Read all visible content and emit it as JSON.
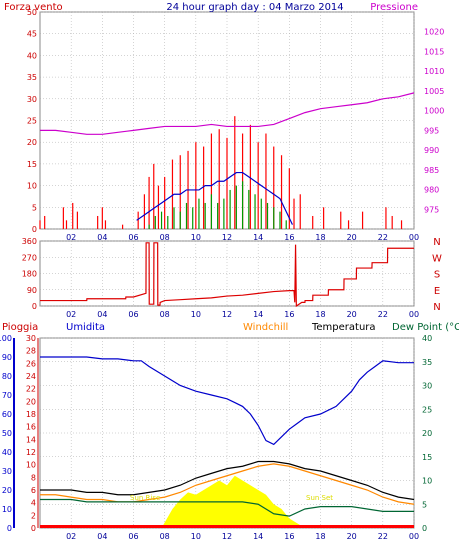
{
  "header": {
    "wind_label": "Forza vento",
    "title": "24 hour graph day : 04 Marzo 2014",
    "pressure_label": "Pressione"
  },
  "middle_header": {
    "rain_label": "Pioggia",
    "humidity_label": "Umidita",
    "windchill_label": "Windchill",
    "temperature_label": "Temperatura",
    "dewpoint_label": "Dew Point (°C"
  },
  "annotations": {
    "sunrise": "Sun Rise",
    "sunset": "Sun Set"
  },
  "colors": {
    "wind_gust": "#ff0000",
    "wind_avg": "#0000cc",
    "wind_min": "#009900",
    "pressure": "#cc00cc",
    "direction": "#dd0000",
    "humidity": "#0000cc",
    "windchill": "#ff8800",
    "temperature": "#000000",
    "dewpoint": "#006633",
    "solar": "#ffff00",
    "rain": "#ff0000",
    "frame": "#888888",
    "grid": "#aaaaaa",
    "pioggia_axis": "#cc0000",
    "dewpoint_axis": "#006633"
  },
  "chart_data": [
    {
      "id": "wind-pressure",
      "type": "line",
      "title": "24 hour graph day : 04 Marzo 2014",
      "xlabel": "",
      "ylabel": "Forza vento",
      "y2label": "Pressione",
      "x_ticks": [
        "02",
        "04",
        "06",
        "08",
        "10",
        "12",
        "14",
        "16",
        "18",
        "20",
        "22",
        "00"
      ],
      "xlim": [
        0,
        24
      ],
      "ylim": [
        0,
        50
      ],
      "y_ticks": [
        0,
        5,
        10,
        15,
        20,
        25,
        30,
        35,
        40,
        45,
        50
      ],
      "y2lim": [
        970,
        1025
      ],
      "y2_ticks": [
        975,
        980,
        985,
        990,
        995,
        1000,
        1005,
        1010,
        1015,
        1020
      ],
      "grid": true,
      "series": [
        {
          "name": "gust",
          "axis": "y",
          "style": "bars",
          "x": [
            0.0,
            0.3,
            1.5,
            1.7,
            2.1,
            2.4,
            3.7,
            4.0,
            4.2,
            5.3,
            6.3,
            6.7,
            7.0,
            7.3,
            7.6,
            8.0,
            8.5,
            9.0,
            9.5,
            10.0,
            10.5,
            11.0,
            11.5,
            12.0,
            12.5,
            13.0,
            13.5,
            14.0,
            14.5,
            15.0,
            15.5,
            16.0,
            16.3,
            16.7,
            17.5,
            18.2,
            19.3,
            19.8,
            20.7,
            22.2,
            22.6,
            23.2
          ],
          "values": [
            2,
            3,
            5,
            2,
            6,
            4,
            3,
            5,
            2,
            1,
            4,
            8,
            12,
            15,
            10,
            12,
            16,
            17,
            18,
            20,
            19,
            22,
            23,
            21,
            26,
            22,
            24,
            20,
            22,
            19,
            17,
            14,
            7,
            8,
            3,
            5,
            4,
            2,
            4,
            5,
            3,
            2
          ]
        },
        {
          "name": "average",
          "axis": "y",
          "style": "line",
          "x": [
            6.2,
            6.6,
            7.0,
            7.4,
            7.8,
            8.2,
            8.6,
            9.0,
            9.4,
            9.8,
            10.2,
            10.6,
            11.0,
            11.4,
            11.8,
            12.2,
            12.6,
            13.0,
            13.4,
            13.8,
            14.2,
            14.6,
            15.0,
            15.4,
            15.8,
            16.2
          ],
          "values": [
            2,
            3,
            4,
            5,
            6,
            7,
            8,
            8,
            9,
            9,
            9,
            10,
            10,
            11,
            11,
            12,
            13,
            13,
            12,
            11,
            10,
            9,
            8,
            7,
            4,
            1
          ]
        },
        {
          "name": "min",
          "axis": "y",
          "style": "bars",
          "x": [
            7.0,
            7.4,
            7.8,
            8.2,
            8.6,
            9.0,
            9.4,
            9.8,
            10.2,
            10.6,
            11.0,
            11.4,
            11.8,
            12.2,
            12.6,
            13.0,
            13.4,
            13.8,
            14.2,
            14.6,
            15.0,
            15.4,
            15.8,
            16.2
          ],
          "values": [
            1,
            3,
            4,
            3,
            5,
            4,
            6,
            5,
            7,
            6,
            8,
            6,
            7,
            9,
            10,
            11,
            9,
            8,
            7,
            6,
            5,
            4,
            2,
            0
          ]
        },
        {
          "name": "pressure",
          "axis": "y2",
          "style": "line",
          "x": [
            0,
            1,
            2,
            3,
            4,
            5,
            6,
            7,
            8,
            9,
            10,
            11,
            12,
            13,
            14,
            15,
            16,
            17,
            18,
            19,
            20,
            21,
            22,
            23,
            24
          ],
          "values": [
            995,
            995,
            994.5,
            994,
            994,
            994.5,
            995,
            995.5,
            996,
            996,
            996,
            996.5,
            996,
            996,
            996,
            996.5,
            998,
            999.5,
            1000.5,
            1001,
            1001.5,
            1002,
            1003,
            1003.5,
            1004.5
          ]
        }
      ]
    },
    {
      "id": "wind-direction",
      "type": "line",
      "xlabel": "",
      "ylabel": "",
      "x_ticks": [
        "02",
        "04",
        "06",
        "08",
        "10",
        "12",
        "14",
        "16",
        "18",
        "20",
        "22",
        "00"
      ],
      "xlim": [
        0,
        24
      ],
      "ylim": [
        0,
        360
      ],
      "y_ticks": [
        0,
        90,
        180,
        270,
        360
      ],
      "compass": [
        "N",
        "W",
        "S",
        "E",
        "N"
      ],
      "grid": true,
      "series": [
        {
          "style": "line",
          "x": [
            0,
            2,
            3,
            3.01,
            4,
            5,
            5.5,
            5.51,
            6,
            6.8,
            6.81,
            7.0,
            7.01,
            7.3,
            7.31,
            7.55,
            7.56,
            7.7,
            7.71,
            8.0,
            9,
            10,
            11,
            12,
            13,
            14,
            15,
            16.0,
            16.3,
            16.35,
            16.4,
            16.45,
            16.8,
            17.0,
            17.01,
            17.5,
            17.51,
            18.5,
            18.51,
            19.5,
            19.51,
            20.3,
            20.31,
            21.3,
            21.31,
            22.3,
            22.31,
            24
          ],
          "values": [
            30,
            30,
            30,
            40,
            40,
            40,
            40,
            50,
            50,
            70,
            350,
            350,
            10,
            10,
            350,
            350,
            5,
            5,
            20,
            30,
            35,
            40,
            45,
            55,
            60,
            70,
            80,
            85,
            85,
            20,
            340,
            0,
            20,
            20,
            30,
            30,
            60,
            60,
            90,
            90,
            150,
            150,
            210,
            210,
            240,
            240,
            320,
            320
          ]
        }
      ]
    },
    {
      "id": "temperature-humidity",
      "type": "line",
      "xlabel": "",
      "ylabel": "Pioggia",
      "x_ticks": [
        "02",
        "04",
        "06",
        "08",
        "10",
        "12",
        "14",
        "16",
        "18",
        "20",
        "22",
        "00"
      ],
      "xlim": [
        0,
        24
      ],
      "ylim": [
        0,
        40
      ],
      "y_ticks": [
        0,
        5,
        10,
        15,
        20,
        25,
        30,
        35,
        40
      ],
      "humidity_axis": {
        "range": [
          0,
          100
        ],
        "ticks": [
          0,
          10,
          20,
          30,
          40,
          50,
          60,
          70,
          80,
          90,
          100
        ]
      },
      "rain_axis": {
        "range": [
          0,
          30
        ],
        "ticks": [
          0,
          2,
          4,
          6,
          8,
          10,
          12,
          14,
          16,
          18,
          20,
          22,
          24,
          26,
          28,
          30
        ]
      },
      "grid": true,
      "series": [
        {
          "name": "Umidita",
          "axis": "humidity",
          "x": [
            0,
            1,
            2,
            3,
            4,
            5,
            6,
            6.5,
            7,
            8,
            9,
            10,
            11,
            12,
            12.5,
            13,
            13.5,
            14,
            14.5,
            15,
            15.5,
            16,
            16.5,
            17,
            18,
            19,
            20,
            20.5,
            21,
            21.5,
            22,
            23,
            24
          ],
          "values": [
            90,
            90,
            90,
            90,
            89,
            89,
            88,
            88,
            85,
            80,
            75,
            72,
            70,
            68,
            66,
            64,
            60,
            54,
            46,
            44,
            48,
            52,
            55,
            58,
            60,
            64,
            72,
            78,
            82,
            85,
            88,
            87,
            87
          ]
        },
        {
          "name": "Windchill",
          "axis": "temp",
          "x": [
            0,
            1,
            2,
            3,
            4,
            5,
            6,
            7,
            8,
            9,
            10,
            11,
            12,
            13,
            14,
            15,
            16,
            17,
            18,
            19,
            20,
            21,
            22,
            23,
            24
          ],
          "values": [
            7,
            7,
            6.5,
            6,
            6,
            5.5,
            5.5,
            6,
            6.5,
            7.5,
            9,
            10,
            11,
            12,
            13,
            13.5,
            13,
            12,
            11,
            10,
            9,
            8,
            6.5,
            5.5,
            5
          ]
        },
        {
          "name": "Temperatura",
          "axis": "temp",
          "x": [
            0,
            1,
            2,
            3,
            4,
            5,
            6,
            7,
            8,
            9,
            10,
            11,
            12,
            13,
            14,
            15,
            16,
            17,
            18,
            19,
            20,
            21,
            22,
            23,
            24
          ],
          "values": [
            8,
            8,
            8,
            7.5,
            7.5,
            7,
            7,
            7.5,
            8,
            9,
            10.5,
            11.5,
            12.5,
            13,
            14,
            14,
            13.5,
            12.5,
            12,
            11,
            10,
            9,
            7.5,
            6.5,
            6
          ]
        },
        {
          "name": "Dew Point",
          "axis": "temp",
          "x": [
            0,
            1,
            2,
            3,
            4,
            5,
            6,
            7,
            8,
            9,
            10,
            11,
            12,
            13,
            14,
            15,
            16,
            17,
            18,
            19,
            20,
            21,
            22,
            23,
            24
          ],
          "values": [
            6,
            6,
            6,
            5.5,
            5.5,
            5.5,
            5.5,
            5.5,
            5.5,
            5.5,
            5.5,
            5.5,
            5.5,
            5.5,
            5,
            3,
            2.5,
            4,
            4.5,
            4.5,
            4.5,
            4,
            3.5,
            3.5,
            3.5
          ]
        },
        {
          "name": "solar",
          "axis": "temp",
          "style": "area",
          "x": [
            7.8,
            8.5,
            9,
            9.5,
            10,
            10.5,
            11,
            11.5,
            12,
            12.5,
            13,
            13.5,
            14,
            14.5,
            15,
            15.5,
            16,
            16.5,
            17
          ],
          "values": [
            0,
            4,
            6,
            7.5,
            7,
            8,
            9,
            10,
            9,
            11,
            10,
            9,
            8,
            7,
            5,
            4,
            2,
            1,
            0
          ]
        },
        {
          "name": "rain",
          "axis": "temp",
          "style": "baseline",
          "x": [
            0,
            24
          ],
          "values": [
            0,
            0
          ]
        }
      ]
    }
  ]
}
